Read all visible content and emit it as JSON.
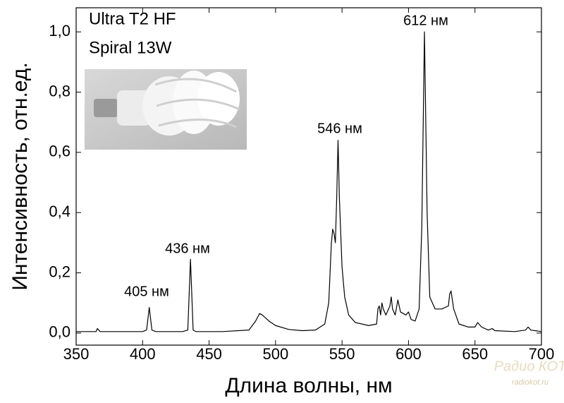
{
  "chart_data": {
    "type": "line",
    "xlabel": "Длина волны, нм",
    "ylabel": "Интенсивность, отн.ед.",
    "annotations": [
      "Ultra T2 HF",
      "Spiral 13W",
      "405 нм",
      "436 нм",
      "546 нм",
      "612 нм"
    ],
    "watermark": [
      "Радио КОТ",
      "radiokot.ru"
    ],
    "xlim": [
      350,
      700
    ],
    "ylim": [
      -0.04,
      1.08
    ],
    "xticks": [
      350,
      400,
      450,
      500,
      550,
      600,
      650,
      700
    ],
    "yticks": [
      {
        "value": 0,
        "label": "0,0"
      },
      {
        "value": 0.2,
        "label": "0,2"
      },
      {
        "value": 0.4,
        "label": "0,4"
      },
      {
        "value": 0.6,
        "label": "0,6"
      },
      {
        "value": 0.8,
        "label": "0,8"
      },
      {
        "value": 1.0,
        "label": "1,0"
      }
    ],
    "x": [
      350,
      360,
      365,
      366,
      368,
      380,
      400,
      403,
      405,
      407,
      410,
      430,
      434,
      436,
      438,
      440,
      460,
      480,
      485,
      488,
      490,
      495,
      500,
      510,
      520,
      530,
      537,
      540,
      542,
      543,
      544,
      545,
      546,
      547,
      548,
      550,
      552,
      555,
      560,
      570,
      576,
      577,
      578,
      579,
      580,
      581,
      583,
      586,
      587,
      588,
      590,
      592,
      594,
      598,
      600,
      602,
      605,
      608,
      610,
      612,
      614,
      616,
      620,
      625,
      630,
      631,
      632,
      634,
      638,
      645,
      650,
      652,
      655,
      660,
      663,
      665,
      680,
      688,
      690,
      692,
      700
    ],
    "series": [
      {
        "color": "#000000",
        "values": [
          0.005,
          0.005,
          0.005,
          0.015,
          0.005,
          0.005,
          0.005,
          0.01,
          0.085,
          0.01,
          0.005,
          0.005,
          0.01,
          0.245,
          0.01,
          0.005,
          0.005,
          0.01,
          0.04,
          0.065,
          0.06,
          0.04,
          0.025,
          0.012,
          0.008,
          0.01,
          0.03,
          0.1,
          0.3,
          0.345,
          0.33,
          0.3,
          0.45,
          0.64,
          0.45,
          0.22,
          0.12,
          0.06,
          0.035,
          0.025,
          0.03,
          0.08,
          0.09,
          0.06,
          0.1,
          0.08,
          0.06,
          0.09,
          0.12,
          0.08,
          0.06,
          0.11,
          0.07,
          0.06,
          0.07,
          0.045,
          0.04,
          0.08,
          0.35,
          1.0,
          0.4,
          0.12,
          0.08,
          0.08,
          0.09,
          0.13,
          0.14,
          0.08,
          0.03,
          0.02,
          0.02,
          0.035,
          0.02,
          0.01,
          0.015,
          0.008,
          0.005,
          0.01,
          0.02,
          0.01,
          0.005
        ]
      }
    ]
  }
}
